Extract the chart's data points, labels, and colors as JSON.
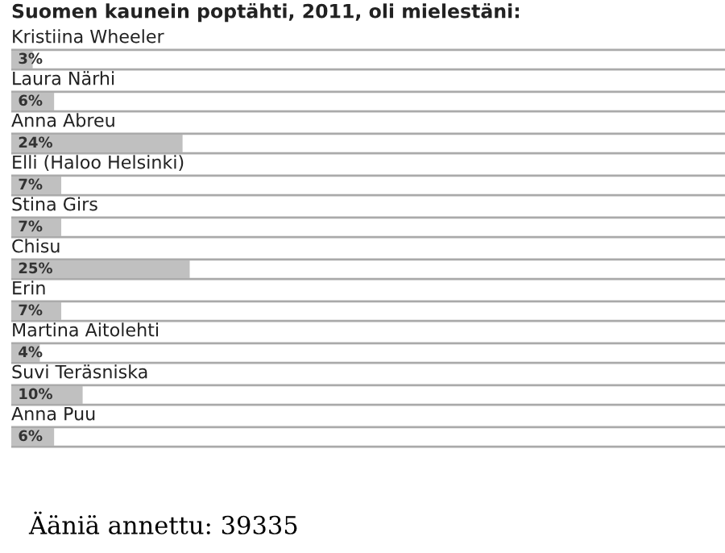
{
  "chart_data": {
    "type": "bar",
    "orientation": "horizontal",
    "title": "Suomen kaunein poptähti, 2011, oli mielestäni:",
    "categories": [
      "Kristiina Wheeler",
      "Laura Närhi",
      "Anna Abreu",
      "Elli (Haloo Helsinki)",
      "Stina Girs",
      "Chisu",
      "Erin",
      "Martina Aitolehti",
      "Suvi Teräsniska",
      "Anna Puu"
    ],
    "values": [
      3,
      6,
      24,
      7,
      7,
      25,
      7,
      4,
      10,
      6
    ],
    "value_labels": [
      "3%",
      "6%",
      "24%",
      "7%",
      "7%",
      "25%",
      "7%",
      "4%",
      "10%",
      "6%"
    ],
    "color": "#c0c0c0",
    "xlim": [
      0,
      100
    ],
    "grid": "y",
    "annotations": [
      "Ääniä annettu: 39335"
    ]
  }
}
